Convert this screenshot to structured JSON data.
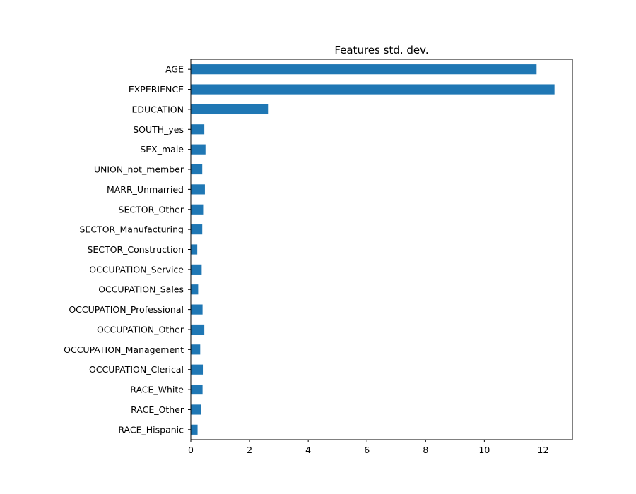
{
  "chart_data": {
    "type": "bar",
    "orientation": "horizontal",
    "title": "Features std. dev.",
    "xlabel": "",
    "ylabel": "",
    "categories": [
      "AGE",
      "EXPERIENCE",
      "EDUCATION",
      "SOUTH_yes",
      "SEX_male",
      "UNION_not_member",
      "MARR_Unmarried",
      "SECTOR_Other",
      "SECTOR_Manufacturing",
      "SECTOR_Construction",
      "OCCUPATION_Service",
      "OCCUPATION_Sales",
      "OCCUPATION_Professional",
      "OCCUPATION_Other",
      "OCCUPATION_Management",
      "OCCUPATION_Clerical",
      "RACE_White",
      "RACE_Other",
      "RACE_Hispanic"
    ],
    "values": [
      11.78,
      12.39,
      2.63,
      0.46,
      0.5,
      0.39,
      0.48,
      0.42,
      0.39,
      0.22,
      0.37,
      0.25,
      0.4,
      0.46,
      0.32,
      0.41,
      0.4,
      0.34,
      0.23
    ],
    "xlim": [
      0,
      13
    ],
    "xticks": [
      "0",
      "2",
      "4",
      "6",
      "8",
      "10",
      "12"
    ],
    "grid": false,
    "colors": {
      "bar": "#1f77b4",
      "axis": "#000000"
    }
  }
}
